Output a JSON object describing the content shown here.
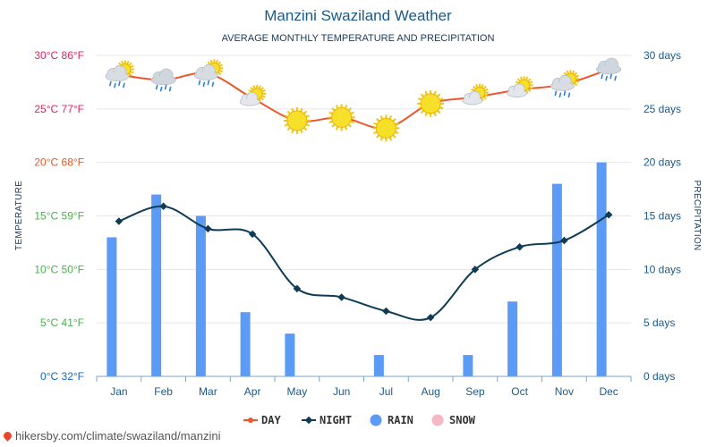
{
  "colors": {
    "day": "#f0542d",
    "night": "#0f3b55",
    "rain": "#5b9bf5",
    "snow": "#f7b6c6",
    "temp_axis_hot": "#e0245e",
    "temp_axis_warm": "#e05a2a",
    "temp_axis_mild": "#4caf50",
    "temp_axis_cold": "#1565c0"
  },
  "footer": {
    "text": "hikersby.com/climate/swaziland/manzini"
  },
  "chart_data": {
    "type": "line+bar",
    "title": "Manzini Swaziland Weather",
    "subtitle": "AVERAGE MONTHLY TEMPERATURE AND PRECIPITATION",
    "ylabel_left": "TEMPERATURE",
    "ylabel_right": "PRECIPITATION",
    "categories": [
      "Jan",
      "Feb",
      "Mar",
      "Apr",
      "May",
      "Jun",
      "Jul",
      "Aug",
      "Sep",
      "Oct",
      "Nov",
      "Dec"
    ],
    "left_axis": {
      "ylim": [
        0,
        30
      ],
      "ticks": [
        {
          "value": 0,
          "label": "0°C 32°F",
          "color": "#1565c0"
        },
        {
          "value": 5,
          "label": "5°C 41°F",
          "color": "#4caf50"
        },
        {
          "value": 10,
          "label": "10°C 50°F",
          "color": "#4caf50"
        },
        {
          "value": 15,
          "label": "15°C 59°F",
          "color": "#4caf50"
        },
        {
          "value": 20,
          "label": "20°C 68°F",
          "color": "#e05a2a"
        },
        {
          "value": 25,
          "label": "25°C 77°F",
          "color": "#e0245e"
        },
        {
          "value": 30,
          "label": "30°C 86°F",
          "color": "#e0245e"
        }
      ]
    },
    "right_axis": {
      "ylim": [
        0,
        30
      ],
      "ticks": [
        {
          "value": 0,
          "label": "0 days"
        },
        {
          "value": 5,
          "label": "5 days"
        },
        {
          "value": 10,
          "label": "10 days"
        },
        {
          "value": 15,
          "label": "15 days"
        },
        {
          "value": 20,
          "label": "20 days"
        },
        {
          "value": 25,
          "label": "25 days"
        },
        {
          "value": 30,
          "label": "30 days"
        }
      ]
    },
    "grid": true,
    "legend_position": "bottom",
    "series": [
      {
        "name": "DAY",
        "kind": "line",
        "axis": "left",
        "values": [
          28.2,
          27.7,
          28.3,
          26.0,
          23.9,
          24.2,
          23.2,
          25.5,
          26.1,
          26.8,
          27.3,
          28.7
        ]
      },
      {
        "name": "NIGHT",
        "kind": "line",
        "axis": "left",
        "values": [
          14.5,
          15.9,
          13.8,
          13.3,
          8.2,
          7.4,
          6.1,
          5.5,
          10.0,
          12.1,
          12.7,
          15.1
        ]
      },
      {
        "name": "RAIN",
        "kind": "bar",
        "axis": "right",
        "values": [
          13,
          17,
          15,
          6,
          4,
          0,
          2,
          0,
          2,
          7,
          18,
          20
        ]
      },
      {
        "name": "SNOW",
        "kind": "bar",
        "axis": "right",
        "values": [
          0,
          0,
          0,
          0,
          0,
          0,
          0,
          0,
          0,
          0,
          0,
          0
        ]
      }
    ],
    "weather_icons": [
      "cloud-sun-rain-icon",
      "cloud-rain-icon",
      "cloud-sun-rain-icon",
      "cloud-sun-icon",
      "sun-icon",
      "sun-icon",
      "sun-icon",
      "sun-icon",
      "cloud-sun-icon",
      "cloud-sun-icon",
      "cloud-sun-rain-icon",
      "cloud-rain-icon"
    ]
  }
}
